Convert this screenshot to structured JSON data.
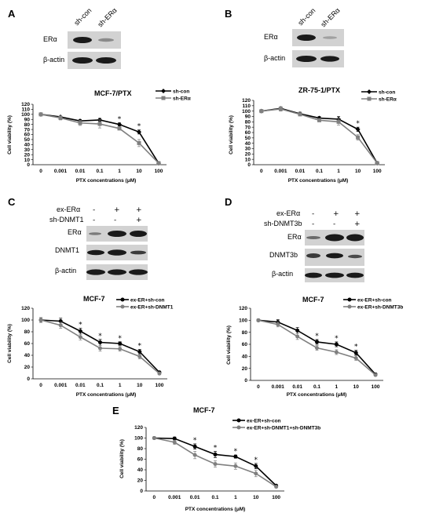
{
  "panels": [
    {
      "letter": "A",
      "lanes": [
        "sh-con",
        "sh-ERα"
      ],
      "rows": [
        "ERα",
        "β-actin"
      ]
    },
    {
      "letter": "B",
      "lanes": [
        "sh-con",
        "sh-ERα"
      ],
      "rows": [
        "ERα",
        "β-actin"
      ]
    },
    {
      "letter": "C",
      "conditions": [
        {
          "name": "ex-ERα",
          "signs": [
            "-",
            "+",
            "+"
          ]
        },
        {
          "name": "sh-DNMT1",
          "signs": [
            "-",
            "-",
            "+"
          ]
        }
      ],
      "rows": [
        "ERα",
        "DNMT1",
        "β-actin"
      ]
    },
    {
      "letter": "D",
      "conditions": [
        {
          "name": "ex-ERα",
          "signs": [
            "-",
            "+",
            "+"
          ]
        },
        {
          "name": "sh-DNMT3b",
          "signs": [
            "-",
            "-",
            "+"
          ]
        }
      ],
      "rows": [
        "ERα",
        "DNMT3b",
        "β-actin"
      ]
    },
    {
      "letter": "E"
    }
  ],
  "colors": {
    "series1": "#000000",
    "series2": "#808080",
    "blot_bg": "#d2d2d2",
    "band": "#1a1a1a"
  },
  "chart_data": [
    {
      "type": "line",
      "title": "MCF-7/PTX",
      "xlabel": "PTX concentrations (μM)",
      "ylabel": "Cell viability (%)",
      "categories": [
        "0",
        "0.001",
        "0.01",
        "0.1",
        "1",
        "10",
        "100"
      ],
      "ylim": [
        0,
        120
      ],
      "yticks": [
        0,
        10,
        20,
        30,
        40,
        50,
        60,
        70,
        80,
        90,
        100,
        110,
        120
      ],
      "legend_position": "top-right",
      "legend_marker": "line",
      "series": [
        {
          "name": "sh-con",
          "values": [
            100,
            95,
            87,
            89,
            80,
            65,
            3
          ],
          "errors": [
            2,
            2,
            3,
            3,
            3,
            4,
            1
          ]
        },
        {
          "name": "sh-ERα",
          "values": [
            100,
            93,
            83,
            81,
            72,
            43,
            3
          ],
          "errors": [
            2,
            4,
            5,
            8,
            3,
            7,
            1
          ]
        }
      ],
      "annotations": [
        {
          "x": "1",
          "text": "*"
        },
        {
          "x": "10",
          "text": "*"
        }
      ]
    },
    {
      "type": "line",
      "title": "ZR-75-1/PTX",
      "xlabel": "PTX concentrations (μM)",
      "ylabel": "Cell viability (%)",
      "categories": [
        "0",
        "0.001",
        "0.01",
        "0.1",
        "1",
        "10",
        "100"
      ],
      "ylim": [
        0,
        120
      ],
      "yticks": [
        0,
        10,
        20,
        30,
        40,
        50,
        60,
        70,
        80,
        90,
        100,
        110,
        120
      ],
      "legend_position": "top-right",
      "legend_marker": "line",
      "series": [
        {
          "name": "sh-con",
          "values": [
            100,
            105,
            95,
            87,
            85,
            66,
            3
          ],
          "errors": [
            2,
            3,
            3,
            3,
            5,
            4,
            1
          ]
        },
        {
          "name": "sh-ERα",
          "values": [
            100,
            104,
            94,
            83,
            80,
            51,
            3
          ],
          "errors": [
            2,
            4,
            3,
            3,
            6,
            5,
            1
          ]
        }
      ],
      "annotations": [
        {
          "x": "10",
          "text": "*"
        }
      ]
    },
    {
      "type": "line",
      "title": "MCF-7",
      "xlabel": "PTX concentrations (μM)",
      "ylabel": "Cell viability (%)",
      "categories": [
        "0",
        "0.001",
        "0.01",
        "0.1",
        "1",
        "10",
        "100"
      ],
      "ylim": [
        0,
        120
      ],
      "yticks": [
        0,
        20,
        40,
        60,
        80,
        100,
        120
      ],
      "legend_position": "top-right",
      "legend_marker": "point",
      "series": [
        {
          "name": "ex-ER+sh-con",
          "values": [
            100,
            98,
            81,
            62,
            60,
            46,
            11
          ],
          "errors": [
            4,
            5,
            5,
            5,
            3,
            4,
            2
          ]
        },
        {
          "name": "ex-ER+sh-DNMT1",
          "values": [
            100,
            91,
            71,
            52,
            51,
            38,
            9
          ],
          "errors": [
            4,
            5,
            5,
            5,
            4,
            4,
            2
          ]
        }
      ],
      "annotations": [
        {
          "x": "0.01",
          "text": "*"
        },
        {
          "x": "0.1",
          "text": "*"
        },
        {
          "x": "1",
          "text": "*"
        },
        {
          "x": "10",
          "text": "*"
        }
      ]
    },
    {
      "type": "line",
      "title": "MCF-7",
      "xlabel": "PTX concentrations (μM)",
      "ylabel": "Cell viability (%)",
      "categories": [
        "0",
        "0.001",
        "0.01",
        "0.1",
        "1",
        "10",
        "100"
      ],
      "ylim": [
        0,
        120
      ],
      "yticks": [
        0,
        20,
        40,
        60,
        80,
        100,
        120
      ],
      "legend_position": "top-right",
      "legend_marker": "point",
      "series": [
        {
          "name": "ex-ER+sh-con",
          "values": [
            100,
            97,
            83,
            64,
            60,
            46,
            10
          ],
          "errors": [
            2,
            4,
            5,
            4,
            4,
            4,
            2
          ]
        },
        {
          "name": "ex-ER+sh-DNMT3b",
          "values": [
            100,
            93,
            73,
            54,
            47,
            37,
            9
          ],
          "errors": [
            2,
            4,
            5,
            4,
            4,
            4,
            2
          ]
        }
      ],
      "annotations": [
        {
          "x": "0.1",
          "text": "*"
        },
        {
          "x": "1",
          "text": "*"
        },
        {
          "x": "10",
          "text": "*"
        }
      ]
    },
    {
      "type": "line",
      "title": "MCF-7",
      "xlabel": "PTX concentrations (μM)",
      "ylabel": "Cell viability (%)",
      "categories": [
        "0",
        "0.001",
        "0.01",
        "0.1",
        "1",
        "10",
        "100"
      ],
      "ylim": [
        0,
        120
      ],
      "yticks": [
        0,
        20,
        40,
        60,
        80,
        100,
        120
      ],
      "legend_position": "top-right",
      "legend_marker": "point",
      "series": [
        {
          "name": "ex-ER+sh-con",
          "values": [
            100,
            99,
            84,
            69,
            65,
            47,
            10
          ],
          "errors": [
            2,
            3,
            5,
            6,
            3,
            5,
            2
          ]
        },
        {
          "name": "ex-ER+sh-DNMT1+sh-DNMT3b",
          "values": [
            100,
            92,
            68,
            51,
            47,
            33,
            8
          ],
          "errors": [
            2,
            4,
            7,
            6,
            6,
            6,
            2
          ]
        }
      ],
      "annotations": [
        {
          "x": "0.01",
          "text": "*"
        },
        {
          "x": "0.1",
          "text": "*"
        },
        {
          "x": "1",
          "text": "*"
        },
        {
          "x": "10",
          "text": "*"
        }
      ]
    }
  ]
}
